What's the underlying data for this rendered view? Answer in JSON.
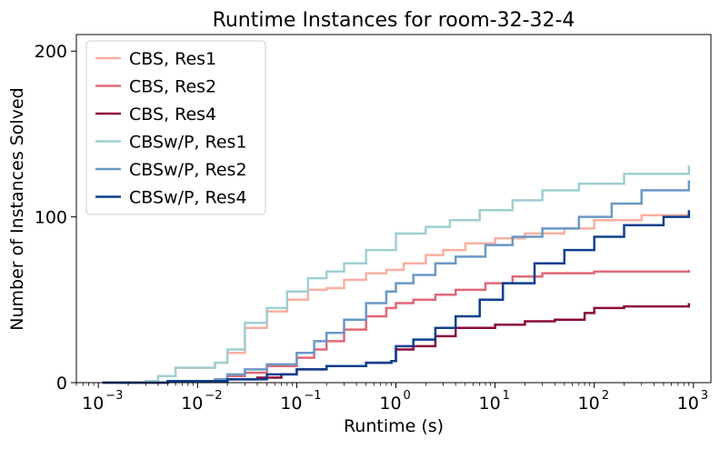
{
  "chart_data": {
    "type": "line",
    "title": "Runtime Instances for room-32-32-4",
    "xlabel": "Runtime (s)",
    "ylabel": "Number of Instances Solved",
    "xscale": "log",
    "xlim": [
      0.0006,
      1500
    ],
    "ylim": [
      0,
      210
    ],
    "xticks": [
      {
        "value": 0.001,
        "base": "10",
        "exp": "−3"
      },
      {
        "value": 0.01,
        "base": "10",
        "exp": "−2"
      },
      {
        "value": 0.1,
        "base": "10",
        "exp": "−1"
      },
      {
        "value": 1,
        "base": "10",
        "exp": "0"
      },
      {
        "value": 10,
        "base": "10",
        "exp": "1"
      },
      {
        "value": 100,
        "base": "10",
        "exp": "2"
      },
      {
        "value": 1000,
        "base": "10",
        "exp": "3"
      }
    ],
    "yticks": [
      {
        "value": 0,
        "label": "0"
      },
      {
        "value": 100,
        "label": "100"
      },
      {
        "value": 200,
        "label": "200"
      }
    ],
    "grid": false,
    "legend_position": "upper-left",
    "series": [
      {
        "name": "CBS, Res1",
        "color": "#f8b0a0",
        "x": [
          0.0011,
          0.003,
          0.004,
          0.006,
          0.015,
          0.02,
          0.03,
          0.05,
          0.08,
          0.13,
          0.2,
          0.3,
          0.5,
          0.8,
          1.2,
          2.0,
          3.0,
          5.0,
          10,
          20,
          50,
          100,
          300,
          900
        ],
        "y": [
          0,
          1,
          4,
          9,
          12,
          18,
          33,
          43,
          50,
          56,
          57,
          62,
          66,
          68,
          72,
          77,
          80,
          84,
          87,
          90,
          93,
          98,
          101,
          103
        ]
      },
      {
        "name": "CBS, Res2",
        "color": "#e06878",
        "x": [
          0.0011,
          0.005,
          0.015,
          0.02,
          0.03,
          0.05,
          0.1,
          0.15,
          0.2,
          0.3,
          0.5,
          0.8,
          1.0,
          1.5,
          2.5,
          4.0,
          8.0,
          15,
          30,
          100,
          900
        ],
        "y": [
          0,
          1,
          2,
          4,
          6,
          10,
          15,
          20,
          25,
          32,
          40,
          45,
          48,
          50,
          53,
          56,
          60,
          64,
          66,
          67,
          68
        ]
      },
      {
        "name": "CBS, Res4",
        "color": "#8c0a3c",
        "x": [
          0.0011,
          0.005,
          0.02,
          0.04,
          0.07,
          0.1,
          0.2,
          0.5,
          0.9,
          1.0,
          1.5,
          2.5,
          4.0,
          10,
          20,
          40,
          80,
          100,
          200,
          900
        ],
        "y": [
          0,
          1,
          2,
          3,
          5,
          8,
          10,
          12,
          13,
          20,
          22,
          28,
          33,
          35,
          37,
          38,
          42,
          45,
          46,
          48
        ]
      },
      {
        "name": "CBSw/P, Res1",
        "color": "#9ecfd2",
        "x": [
          0.0011,
          0.003,
          0.004,
          0.006,
          0.015,
          0.02,
          0.03,
          0.05,
          0.08,
          0.13,
          0.2,
          0.3,
          0.5,
          1.0,
          2.0,
          3.5,
          7.0,
          15,
          30,
          70,
          200,
          900
        ],
        "y": [
          0,
          1,
          4,
          9,
          12,
          20,
          36,
          45,
          55,
          63,
          67,
          72,
          80,
          90,
          94,
          98,
          104,
          110,
          116,
          120,
          126,
          131
        ]
      },
      {
        "name": "CBSw/P, Res2",
        "color": "#6a98c4",
        "x": [
          0.0011,
          0.005,
          0.015,
          0.02,
          0.03,
          0.05,
          0.1,
          0.15,
          0.2,
          0.3,
          0.5,
          0.8,
          1.0,
          1.5,
          2.5,
          4.0,
          8.0,
          15,
          30,
          70,
          150,
          300,
          900
        ],
        "y": [
          0,
          1,
          2,
          5,
          8,
          11,
          18,
          25,
          30,
          38,
          48,
          55,
          60,
          65,
          72,
          76,
          83,
          88,
          93,
          100,
          108,
          116,
          122
        ]
      },
      {
        "name": "CBSw/P, Res4",
        "color": "#0e3f8e",
        "x": [
          0.0011,
          0.005,
          0.02,
          0.05,
          0.1,
          0.2,
          0.5,
          0.9,
          1.0,
          1.5,
          2.5,
          4.0,
          7.0,
          12,
          25,
          50,
          100,
          200,
          500,
          900
        ],
        "y": [
          0,
          1,
          2,
          5,
          8,
          10,
          12,
          13,
          22,
          26,
          33,
          40,
          50,
          60,
          72,
          80,
          88,
          95,
          100,
          104
        ]
      }
    ]
  }
}
